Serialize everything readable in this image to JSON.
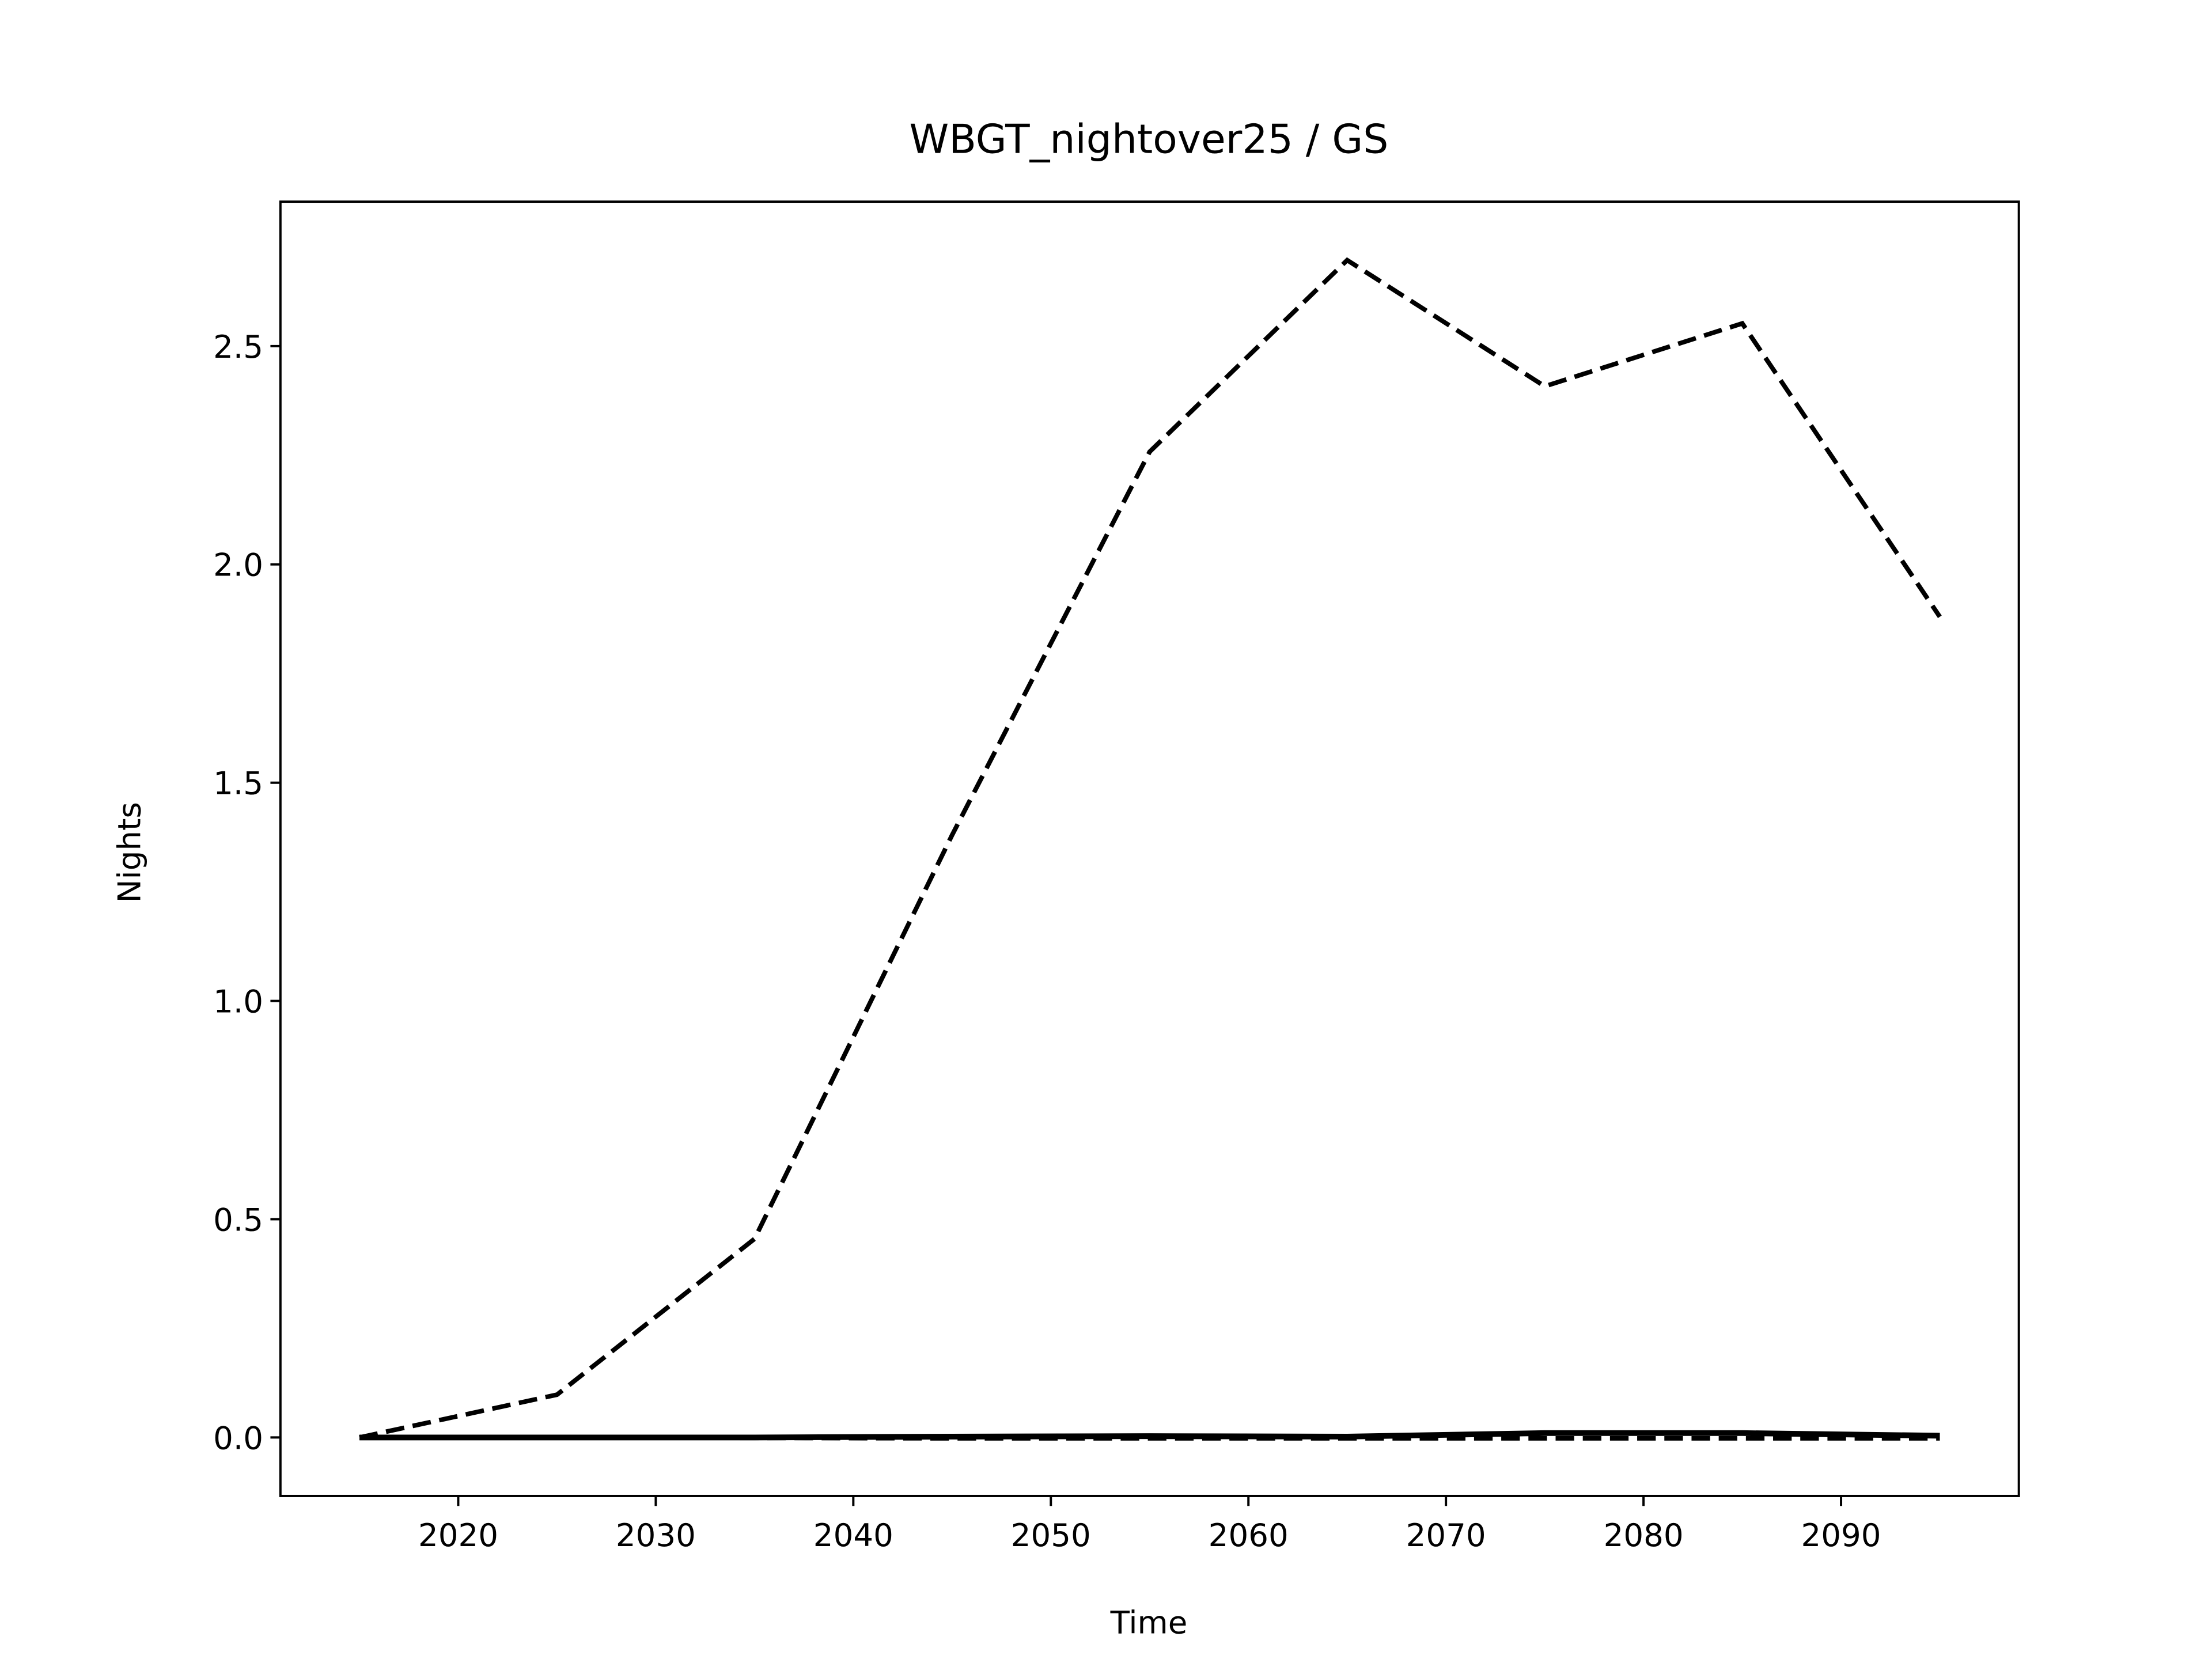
{
  "chart_data": {
    "type": "line",
    "title": "WBGT_nightover25 / GS",
    "x_label": "Time",
    "y_label": "Nights",
    "x": [
      2015,
      2025,
      2035,
      2045,
      2055,
      2065,
      2075,
      2085,
      2095
    ],
    "series": [
      {
        "color": "#000000",
        "dash": "dashed",
        "values": [
          0,
          0.098,
          0.455,
          1.38,
          2.258,
          2.697,
          2.408,
          2.552,
          1.88
        ]
      },
      {
        "color": "#000000",
        "dash": "solid",
        "values": [
          0,
          0,
          0,
          0.002,
          0.003,
          0.002,
          0.01,
          0.01,
          0.004
        ]
      },
      {
        "color": "#000000",
        "dash": "dashed",
        "values": [
          0,
          0,
          -0.001,
          -0.002,
          -0.002,
          -0.002,
          -0.002,
          -0.002,
          -0.002
        ]
      }
    ],
    "xlim": [
      2011,
      2099
    ],
    "ylim": [
      -0.134,
      2.831
    ],
    "xticks": [
      2020,
      2030,
      2040,
      2050,
      2060,
      2070,
      2080,
      2090
    ],
    "yticks": [
      {
        "value": 0,
        "label": "0.0"
      },
      0.5,
      {
        "value": 1,
        "label": "1.0"
      },
      1.5,
      {
        "value": 2,
        "label": "2.0"
      },
      2.5
    ],
    "grid": false
  }
}
